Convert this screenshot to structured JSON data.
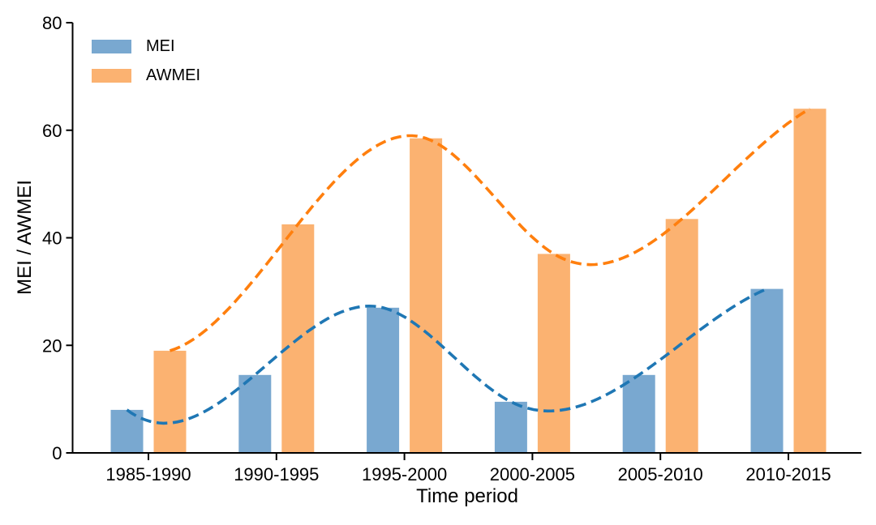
{
  "chart_data": {
    "type": "bar",
    "title": "",
    "xlabel": "Time period",
    "ylabel": "MEI / AWMEI",
    "categories": [
      "1985-1990",
      "1990-1995",
      "1995-2000",
      "2000-2005",
      "2005-2010",
      "2010-2015"
    ],
    "series": [
      {
        "name": "MEI",
        "values": [
          8,
          14.5,
          27,
          9.5,
          14.5,
          30.5
        ],
        "bar_color": "#79A8D0",
        "line_color": "#1F77B4"
      },
      {
        "name": "AWMEI",
        "values": [
          19,
          42.5,
          58.5,
          37,
          43.5,
          64
        ],
        "bar_color": "#FBB271",
        "line_color": "#FF7F0E"
      }
    ],
    "overlay": "dashed cubic-spline trend line through bar tops, one per series",
    "ylim": [
      0,
      80
    ],
    "yticks": [
      0,
      20,
      40,
      60,
      80
    ],
    "legend_position": "upper left",
    "grid": false,
    "axis_color": "#000000"
  }
}
